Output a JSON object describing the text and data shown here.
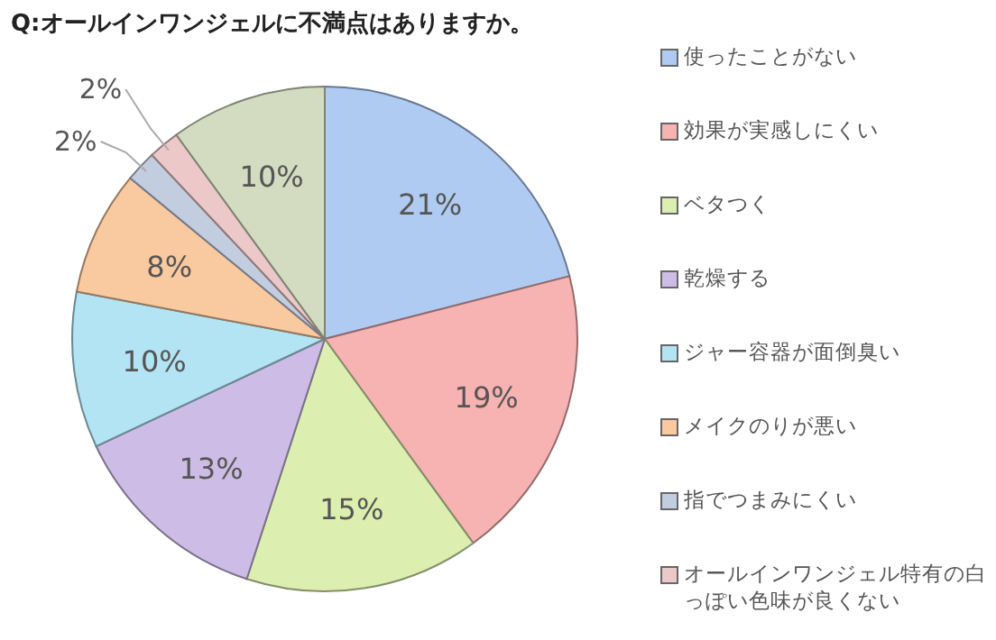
{
  "chart_data": {
    "type": "pie",
    "title": "Q:オールインワンジェルに不満点はありますか。",
    "categories": [
      "使ったことがない",
      "効果が実感しにくい",
      "ベタつく",
      "乾燥する",
      "ジャー容器が面倒臭い",
      "メイクのりが悪い",
      "指でつまみにくい",
      "オールインワンジェル特有の白っぽい色味が良くない",
      null
    ],
    "values": [
      21,
      19,
      15,
      13,
      10,
      8,
      2,
      2,
      10
    ],
    "value_labels": [
      "21%",
      "19%",
      "15%",
      "13%",
      "10%",
      "8%",
      "2%",
      "2%",
      "10%"
    ],
    "colors": [
      "#b0cbf2",
      "#f7b2b2",
      "#dcefb0",
      "#cdbde6",
      "#b2e4f4",
      "#f9c9a0",
      "#c3cde0",
      "#ecc8c8",
      "#d3dcc0"
    ],
    "legend": "right"
  }
}
